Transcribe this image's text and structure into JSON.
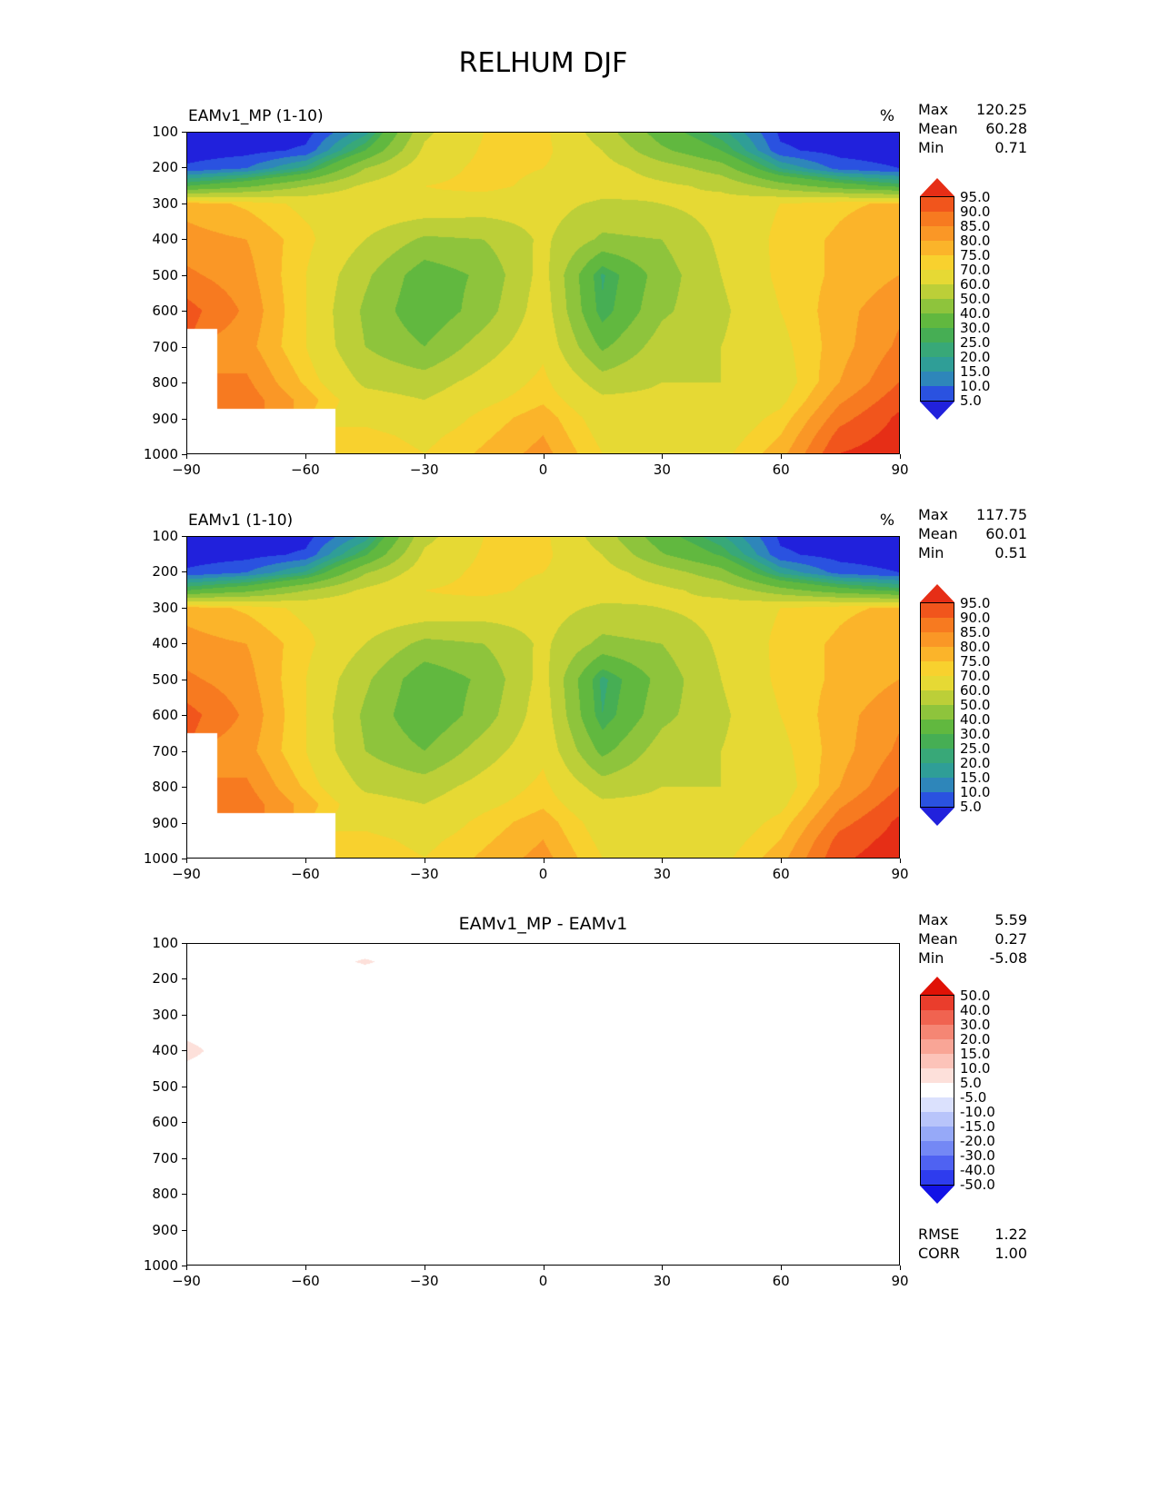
{
  "figure_title": "RELHUM DJF",
  "axes": {
    "x_ticks": [
      "−90",
      "−60",
      "−30",
      "0",
      "30",
      "60",
      "90"
    ],
    "y_ticks": [
      "100",
      "200",
      "300",
      "400",
      "500",
      "600",
      "700",
      "800",
      "900",
      "1000"
    ]
  },
  "panels": [
    {
      "title": "EAMv1_MP (1-10)",
      "units": "%",
      "stats": [
        {
          "label": "Max",
          "value": "120.25"
        },
        {
          "label": "Mean",
          "value": "60.28"
        },
        {
          "label": "Min",
          "value": "0.71"
        }
      ]
    },
    {
      "title": "EAMv1 (1-10)",
      "units": "%",
      "stats": [
        {
          "label": "Max",
          "value": "117.75"
        },
        {
          "label": "Mean",
          "value": "60.01"
        },
        {
          "label": "Min",
          "value": "0.51"
        }
      ]
    },
    {
      "title": "EAMv1_MP - EAMv1",
      "units": "",
      "stats": [
        {
          "label": "Max",
          "value": "5.59"
        },
        {
          "label": "Mean",
          "value": "0.27"
        },
        {
          "label": "Min",
          "value": "-5.08"
        }
      ],
      "metrics": [
        {
          "label": "RMSE",
          "value": "1.22"
        },
        {
          "label": "CORR",
          "value": "1.00"
        }
      ]
    }
  ],
  "chart_data": [
    {
      "type": "heatmap",
      "title": "EAMv1_MP (1-10)",
      "units": "%",
      "xlabel": "",
      "ylabel": "",
      "xlim": [
        -90,
        90
      ],
      "ylim": [
        1000,
        100
      ],
      "x": [
        -90,
        -75,
        -60,
        -45,
        -30,
        -15,
        0,
        15,
        30,
        45,
        60,
        75,
        90
      ],
      "y": [
        100,
        150,
        200,
        250,
        300,
        400,
        500,
        600,
        700,
        800,
        850,
        900,
        950,
        1000
      ],
      "values": [
        [
          2,
          2,
          3,
          18,
          58,
          70,
          72,
          55,
          35,
          22,
          4,
          2,
          2
        ],
        [
          2,
          3,
          6,
          30,
          62,
          71,
          72,
          60,
          42,
          30,
          6,
          3,
          2
        ],
        [
          6,
          10,
          22,
          50,
          66,
          72,
          70,
          64,
          55,
          45,
          20,
          8,
          5
        ],
        [
          30,
          38,
          50,
          62,
          70,
          72,
          68,
          65,
          62,
          58,
          45,
          35,
          28
        ],
        [
          78,
          74,
          68,
          68,
          68,
          66,
          64,
          58,
          60,
          64,
          70,
          74,
          76
        ],
        [
          82,
          80,
          72,
          60,
          48,
          50,
          62,
          48,
          50,
          62,
          72,
          76,
          80
        ],
        [
          86,
          82,
          70,
          52,
          34,
          42,
          64,
          24,
          45,
          60,
          72,
          76,
          80
        ],
        [
          92,
          84,
          70,
          48,
          32,
          45,
          66,
          26,
          48,
          58,
          70,
          78,
          84
        ],
        [
          null,
          82,
          70,
          50,
          40,
          55,
          68,
          38,
          55,
          60,
          68,
          78,
          86
        ],
        [
          null,
          86,
          74,
          58,
          55,
          64,
          72,
          55,
          60,
          60,
          66,
          80,
          90
        ],
        [
          null,
          88,
          78,
          64,
          60,
          68,
          74,
          62,
          62,
          62,
          68,
          84,
          93
        ],
        [
          null,
          null,
          null,
          68,
          64,
          72,
          78,
          66,
          64,
          64,
          72,
          88,
          96
        ],
        [
          null,
          null,
          null,
          72,
          68,
          74,
          80,
          68,
          66,
          66,
          75,
          92,
          97
        ],
        [
          null,
          null,
          null,
          74,
          70,
          76,
          82,
          70,
          68,
          68,
          78,
          95,
          98
        ]
      ],
      "levels": [
        5,
        10,
        15,
        20,
        25,
        30,
        40,
        50,
        60,
        70,
        75,
        80,
        85,
        90,
        95
      ],
      "colors": [
        "#2121dc",
        "#2a52e0",
        "#2e86ba",
        "#2f9e97",
        "#38a878",
        "#46ae54",
        "#61b83f",
        "#8ec43c",
        "#bccf38",
        "#e6d934",
        "#f8d12e",
        "#fbb42a",
        "#fa9726",
        "#f77a20",
        "#f1551c",
        "#e62e16"
      ],
      "stats": {
        "max": 120.25,
        "mean": 60.28,
        "min": 0.71
      }
    },
    {
      "type": "heatmap",
      "title": "EAMv1 (1-10)",
      "units": "%",
      "xlabel": "",
      "ylabel": "",
      "xlim": [
        -90,
        90
      ],
      "ylim": [
        1000,
        100
      ],
      "x": [
        -90,
        -75,
        -60,
        -45,
        -30,
        -15,
        0,
        15,
        30,
        45,
        60,
        75,
        90
      ],
      "y": [
        100,
        150,
        200,
        250,
        300,
        400,
        500,
        600,
        700,
        800,
        850,
        900,
        950,
        1000
      ],
      "values": [
        [
          2,
          2,
          3,
          17,
          57,
          70,
          72,
          55,
          34,
          21,
          4,
          2,
          2
        ],
        [
          2,
          3,
          6,
          29,
          62,
          71,
          72,
          60,
          41,
          29,
          6,
          3,
          2
        ],
        [
          6,
          10,
          21,
          49,
          66,
          72,
          70,
          64,
          55,
          44,
          19,
          8,
          5
        ],
        [
          30,
          37,
          50,
          62,
          70,
          72,
          68,
          65,
          62,
          57,
          44,
          34,
          28
        ],
        [
          78,
          74,
          68,
          68,
          68,
          66,
          64,
          58,
          60,
          64,
          70,
          74,
          76
        ],
        [
          82,
          80,
          72,
          60,
          47,
          50,
          62,
          47,
          50,
          62,
          72,
          76,
          80
        ],
        [
          86,
          82,
          70,
          52,
          33,
          42,
          64,
          23,
          44,
          60,
          72,
          76,
          80
        ],
        [
          92,
          84,
          70,
          48,
          31,
          45,
          66,
          25,
          47,
          58,
          70,
          78,
          84
        ],
        [
          null,
          82,
          70,
          50,
          40,
          55,
          68,
          37,
          55,
          60,
          68,
          78,
          86
        ],
        [
          null,
          86,
          74,
          58,
          55,
          64,
          72,
          55,
          60,
          60,
          66,
          80,
          90
        ],
        [
          null,
          88,
          78,
          64,
          60,
          68,
          74,
          62,
          62,
          62,
          68,
          84,
          93
        ],
        [
          null,
          null,
          null,
          68,
          64,
          72,
          78,
          66,
          64,
          64,
          72,
          88,
          96
        ],
        [
          null,
          null,
          null,
          72,
          68,
          74,
          80,
          68,
          66,
          66,
          75,
          92,
          97
        ],
        [
          null,
          null,
          null,
          74,
          70,
          76,
          82,
          70,
          68,
          68,
          78,
          94,
          98
        ]
      ],
      "levels": [
        5,
        10,
        15,
        20,
        25,
        30,
        40,
        50,
        60,
        70,
        75,
        80,
        85,
        90,
        95
      ],
      "colors": [
        "#2121dc",
        "#2a52e0",
        "#2e86ba",
        "#2f9e97",
        "#38a878",
        "#46ae54",
        "#61b83f",
        "#8ec43c",
        "#bccf38",
        "#e6d934",
        "#f8d12e",
        "#fbb42a",
        "#fa9726",
        "#f77a20",
        "#f1551c",
        "#e62e16"
      ],
      "stats": {
        "max": 117.75,
        "mean": 60.01,
        "min": 0.51
      }
    },
    {
      "type": "heatmap",
      "title": "EAMv1_MP - EAMv1",
      "units": "%",
      "xlabel": "",
      "ylabel": "",
      "xlim": [
        -90,
        90
      ],
      "ylim": [
        1000,
        100
      ],
      "x": [
        -90,
        -75,
        -60,
        -45,
        -30,
        -15,
        0,
        15,
        30,
        45,
        60,
        75,
        90
      ],
      "y": [
        100,
        150,
        200,
        250,
        300,
        400,
        500,
        600,
        700,
        800,
        850,
        900,
        950,
        1000
      ],
      "values": [
        [
          0,
          0,
          0,
          0,
          0,
          0,
          0,
          0,
          0,
          0,
          0,
          0,
          0
        ],
        [
          0,
          0,
          0,
          6,
          0,
          0,
          0,
          0,
          0,
          0,
          0,
          0,
          0
        ],
        [
          0,
          0,
          0,
          0,
          0,
          0,
          0,
          0,
          0,
          0,
          0,
          0,
          0
        ],
        [
          0,
          0,
          0,
          0,
          0,
          0,
          0,
          0,
          0,
          0,
          0,
          0,
          0
        ],
        [
          0,
          0,
          0,
          0,
          0,
          0,
          0,
          0,
          0,
          0,
          0,
          0,
          0
        ],
        [
          7,
          0,
          0,
          0,
          0,
          0,
          0,
          0,
          0,
          0,
          0,
          0,
          0
        ],
        [
          0,
          0,
          0,
          0,
          0,
          0,
          0,
          0,
          0,
          0,
          0,
          0,
          0
        ],
        [
          0,
          0,
          0,
          0,
          0,
          0,
          0,
          0,
          0,
          0,
          0,
          0,
          0
        ],
        [
          null,
          0,
          0,
          0,
          0,
          0,
          0,
          0,
          0,
          0,
          0,
          0,
          0
        ],
        [
          null,
          0,
          0,
          0,
          0,
          0,
          0,
          0,
          0,
          0,
          0,
          0,
          0
        ],
        [
          null,
          0,
          0,
          0,
          0,
          0,
          0,
          0,
          0,
          0,
          0,
          0,
          0
        ],
        [
          null,
          null,
          null,
          0,
          0,
          0,
          0,
          0,
          0,
          0,
          0,
          0,
          0
        ],
        [
          null,
          null,
          null,
          0,
          0,
          0,
          0,
          0,
          0,
          0,
          0,
          0,
          0
        ],
        [
          null,
          null,
          null,
          0,
          0,
          0,
          0,
          0,
          0,
          0,
          0,
          0,
          0
        ]
      ],
      "levels": [
        -50,
        -40,
        -30,
        -20,
        -15,
        -10,
        -5,
        5,
        10,
        15,
        20,
        30,
        40,
        50
      ],
      "colors": [
        "#1212e6",
        "#2e3cee",
        "#4f62f2",
        "#7488f5",
        "#96a9f8",
        "#b8c4fa",
        "#dbe1fd",
        "#ffffff",
        "#fde0da",
        "#fcc3b9",
        "#f9a596",
        "#f58674",
        "#f06350",
        "#ea3d2c",
        "#e01206"
      ],
      "stats": {
        "max": 5.59,
        "mean": 0.27,
        "min": -5.08,
        "rmse": 1.22,
        "corr": 1.0
      }
    }
  ]
}
